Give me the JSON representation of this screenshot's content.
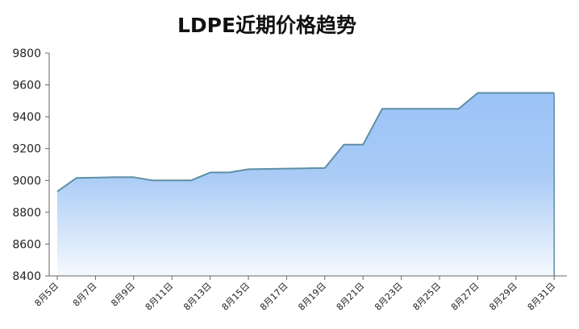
{
  "chart_data": {
    "type": "area",
    "title": "LDPE近期价格趋势",
    "xlabel": "",
    "ylabel": "",
    "ylim": [
      8400,
      9800
    ],
    "yticks": [
      8400,
      8600,
      8800,
      9000,
      9200,
      9400,
      9600,
      9800
    ],
    "xticks": [
      "8月5日",
      "8月7日",
      "8月9日",
      "8月11日",
      "8月13日",
      "8月15日",
      "8月17日",
      "8月19日",
      "8月21日",
      "8月23日",
      "8月25日",
      "8月27日",
      "8月29日",
      "8月31日"
    ],
    "grid": false,
    "legend": "none",
    "series": [
      {
        "x": [
          5,
          6,
          8,
          9,
          10,
          11,
          12,
          13,
          14,
          15,
          16,
          17,
          18,
          19,
          20,
          21,
          22,
          23,
          24,
          25,
          26,
          27,
          28,
          29,
          30,
          31
        ],
        "values": [
          8930,
          9015,
          9020,
          9020,
          9000,
          9000,
          9000,
          9050,
          9050,
          9070,
          9072,
          9074,
          9076,
          9078,
          9225,
          9225,
          9450,
          9450,
          9450,
          9450,
          9450,
          9550,
          9550,
          9550,
          9550,
          9550
        ]
      }
    ],
    "colors": {
      "line": "#5e8fa6",
      "fill_top": "#9cc3f7",
      "fill_bottom": "#f5f9fd",
      "axis": "#666666"
    }
  }
}
